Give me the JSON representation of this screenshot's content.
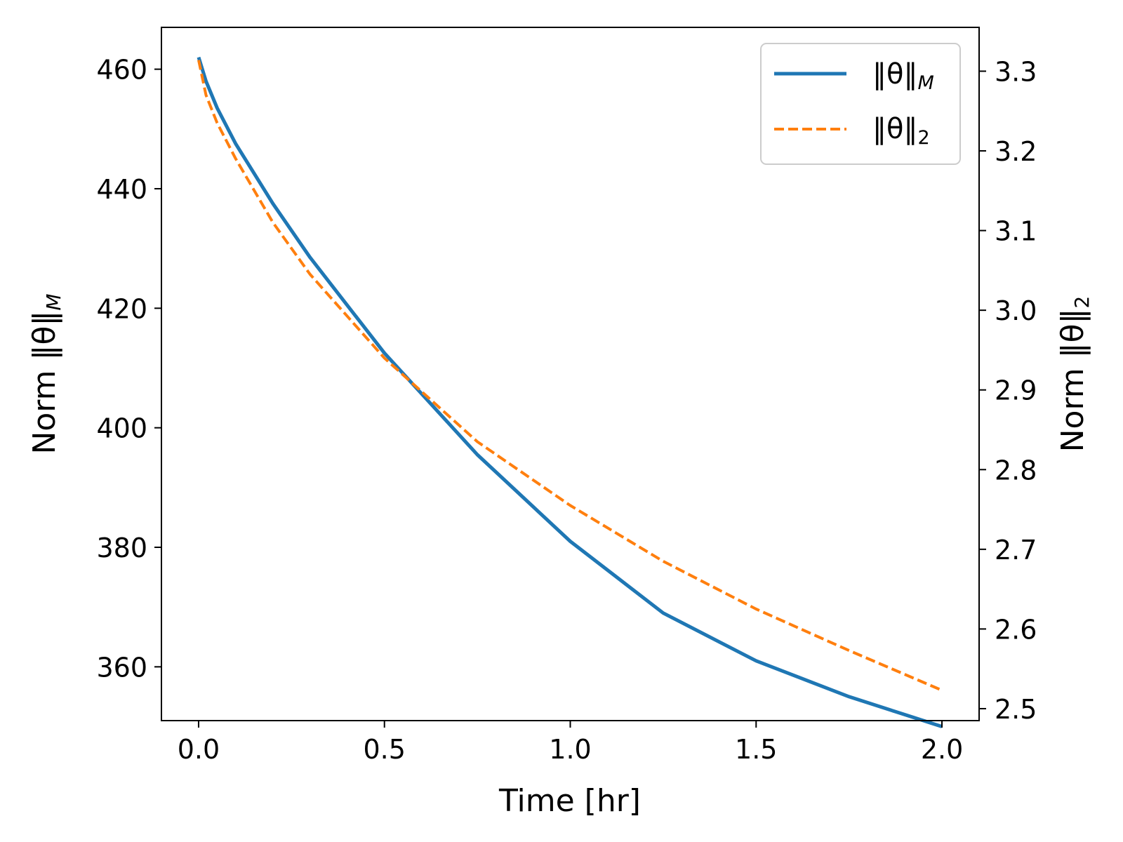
{
  "chart_data": {
    "type": "line",
    "xlabel": "Time [hr]",
    "ylabel_left": "Norm ‖θ‖",
    "ylabel_left_sub": "M",
    "ylabel_right": "Norm ‖θ‖",
    "ylabel_right_sub": "2",
    "xlim": [
      -0.1,
      2.1
    ],
    "ylim_left": [
      351,
      467
    ],
    "ylim_right": [
      2.485,
      3.355
    ],
    "xticks": [
      0.0,
      0.5,
      1.0,
      1.5,
      2.0
    ],
    "xtick_labels": [
      "0.0",
      "0.5",
      "1.0",
      "1.5",
      "2.0"
    ],
    "yticks_left": [
      360,
      380,
      400,
      420,
      440,
      460
    ],
    "ytick_labels_left": [
      "360",
      "380",
      "400",
      "420",
      "440",
      "460"
    ],
    "yticks_right": [
      2.5,
      2.6,
      2.7,
      2.8,
      2.9,
      3.0,
      3.1,
      3.2,
      3.3
    ],
    "ytick_labels_right": [
      "2.5",
      "2.6",
      "2.7",
      "2.8",
      "2.9",
      "3.0",
      "3.1",
      "3.2",
      "3.3"
    ],
    "grid": false,
    "legend_position": "top-right",
    "x": [
      0.0,
      0.02,
      0.05,
      0.1,
      0.2,
      0.3,
      0.5,
      0.75,
      1.0,
      1.25,
      1.5,
      1.75,
      2.0
    ],
    "series": [
      {
        "name": "‖θ‖",
        "name_sub": "M",
        "axis": "left",
        "color": "#1f77b4",
        "style": "solid",
        "values": [
          462,
          458,
          453.5,
          447.5,
          437.5,
          428.5,
          412.5,
          395.5,
          381,
          369,
          361,
          355,
          350
        ]
      },
      {
        "name": "‖θ‖",
        "name_sub": "2",
        "axis": "right",
        "color": "#ff7f0e",
        "style": "dashed",
        "values": [
          3.314,
          3.27,
          3.235,
          3.19,
          3.11,
          3.045,
          2.94,
          2.835,
          2.755,
          2.685,
          2.625,
          2.573,
          2.523
        ]
      }
    ]
  }
}
